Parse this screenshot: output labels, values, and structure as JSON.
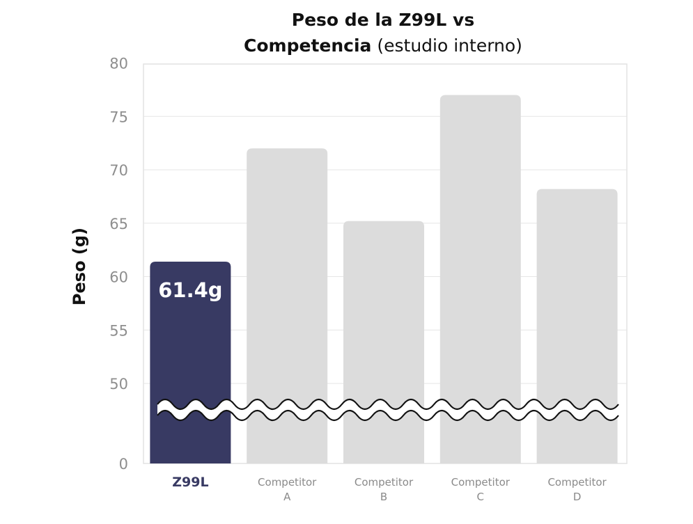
{
  "chart_data": {
    "type": "bar",
    "title_bold_1": "Peso de la Z99L vs",
    "title_bold_2": "Competencia",
    "title_normal_2": " (estudio interno)",
    "ylabel": "Peso (g)",
    "xlabel": "",
    "categories": [
      {
        "line1": "Z99L",
        "line2": ""
      },
      {
        "line1": "Competitor",
        "line2": "A"
      },
      {
        "line1": "Competitor",
        "line2": "B"
      },
      {
        "line1": "Competitor",
        "line2": "C"
      },
      {
        "line1": "Competitor",
        "line2": "D"
      }
    ],
    "values": [
      61.4,
      72,
      65.2,
      77,
      68.2
    ],
    "highlight_index": 0,
    "highlight_label": "61.4g",
    "yticks": [
      0,
      50,
      55,
      60,
      65,
      70,
      75,
      80
    ],
    "ylim": [
      0,
      80
    ],
    "axis_break": "between 0 and 50",
    "grid": true,
    "colors": {
      "highlight": "#383a63",
      "other": "#dcdcdc",
      "grid": "#e6e6e6",
      "tick_text": "#8e8e8e"
    }
  }
}
